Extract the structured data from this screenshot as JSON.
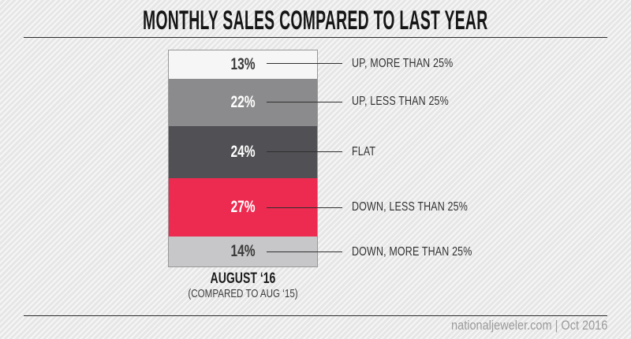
{
  "page": {
    "title": "MONTHLY SALES COMPARED TO LAST YEAR",
    "footer": {
      "source_text": "nationaljeweler.com | Oct 2016"
    }
  },
  "chart_data": {
    "type": "bar",
    "subtype": "stacked-single-column-percentage",
    "title": "MONTHLY SALES COMPARED TO LAST YEAR",
    "x_category": "AUGUST ‘16",
    "x_category_note": "(COMPARED TO AUG ‘15)",
    "unit": "%",
    "total": 100,
    "grid": false,
    "legend_position": "right-callouts",
    "segments": [
      {
        "label": "UP, MORE THAN 25%",
        "value": 13,
        "display": "13%",
        "fill": "#f6f6f6",
        "text": "#3a3a3a"
      },
      {
        "label": "UP, LESS THAN 25%",
        "value": 22,
        "display": "22%",
        "fill": "#8b8b8d",
        "text": "#ffffff"
      },
      {
        "label": "FLAT",
        "value": 24,
        "display": "24%",
        "fill": "#515155",
        "text": "#ffffff"
      },
      {
        "label": "DOWN, LESS THAN 25%",
        "value": 27,
        "display": "27%",
        "fill": "#ed2a50",
        "text": "#ffffff"
      },
      {
        "label": "DOWN, MORE THAN 25%",
        "value": 14,
        "display": "14%",
        "fill": "#c7c7c9",
        "text": "#3a3a3a"
      }
    ]
  },
  "colors": {
    "accent_red": "#ed2a50",
    "background": "#e6e6e6",
    "rule_line": "#2b2b2b",
    "footer_text": "#9b9b9b"
  }
}
